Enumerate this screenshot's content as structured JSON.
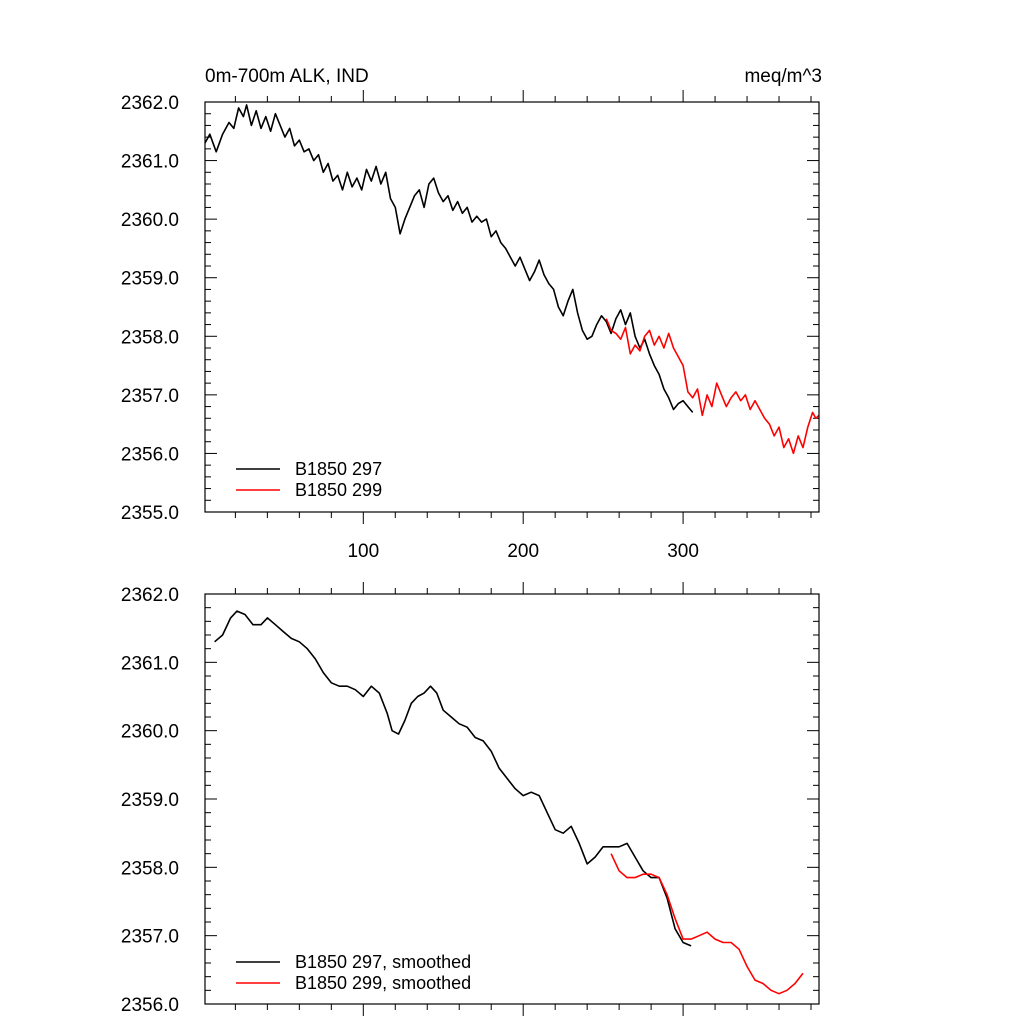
{
  "colors": {
    "black": "#000000",
    "red": "#ff0000"
  },
  "chart_data": [
    {
      "type": "line",
      "title": "0m-700m ALK, IND",
      "units": "meq/m^3",
      "xlim": [
        1,
        385
      ],
      "ylim": [
        2355.0,
        2362.0
      ],
      "x_ticks": [
        100,
        200,
        300
      ],
      "x_tick_labels": [
        "100",
        "200",
        "300"
      ],
      "y_ticks": [
        2355.0,
        2356.0,
        2357.0,
        2358.0,
        2359.0,
        2360.0,
        2361.0,
        2362.0
      ],
      "y_tick_labels": [
        "2355.0",
        "2356.0",
        "2357.0",
        "2358.0",
        "2359.0",
        "2360.0",
        "2361.0",
        "2362.0"
      ],
      "legend": "bottom-left",
      "series": [
        {
          "name": "B1850 297",
          "color": "#000000",
          "points": [
            [
              1,
              2361.3
            ],
            [
              4,
              2361.45
            ],
            [
              8,
              2361.15
            ],
            [
              12,
              2361.45
            ],
            [
              16,
              2361.65
            ],
            [
              19,
              2361.55
            ],
            [
              22,
              2361.9
            ],
            [
              25,
              2361.75
            ],
            [
              27,
              2361.95
            ],
            [
              30,
              2361.6
            ],
            [
              33,
              2361.85
            ],
            [
              36,
              2361.55
            ],
            [
              39,
              2361.75
            ],
            [
              42,
              2361.5
            ],
            [
              45,
              2361.8
            ],
            [
              48,
              2361.6
            ],
            [
              51,
              2361.4
            ],
            [
              54,
              2361.55
            ],
            [
              57,
              2361.25
            ],
            [
              60,
              2361.35
            ],
            [
              63,
              2361.15
            ],
            [
              66,
              2361.2
            ],
            [
              69,
              2361.0
            ],
            [
              72,
              2361.1
            ],
            [
              75,
              2360.8
            ],
            [
              78,
              2360.95
            ],
            [
              81,
              2360.65
            ],
            [
              84,
              2360.75
            ],
            [
              87,
              2360.5
            ],
            [
              90,
              2360.8
            ],
            [
              93,
              2360.55
            ],
            [
              96,
              2360.7
            ],
            [
              99,
              2360.5
            ],
            [
              102,
              2360.85
            ],
            [
              105,
              2360.65
            ],
            [
              108,
              2360.9
            ],
            [
              111,
              2360.6
            ],
            [
              114,
              2360.8
            ],
            [
              117,
              2360.35
            ],
            [
              120,
              2360.2
            ],
            [
              123,
              2359.75
            ],
            [
              126,
              2360.0
            ],
            [
              129,
              2360.2
            ],
            [
              132,
              2360.4
            ],
            [
              135,
              2360.5
            ],
            [
              138,
              2360.2
            ],
            [
              141,
              2360.6
            ],
            [
              144,
              2360.7
            ],
            [
              147,
              2360.45
            ],
            [
              150,
              2360.3
            ],
            [
              153,
              2360.4
            ],
            [
              156,
              2360.15
            ],
            [
              159,
              2360.3
            ],
            [
              162,
              2360.1
            ],
            [
              165,
              2360.2
            ],
            [
              168,
              2359.95
            ],
            [
              171,
              2360.05
            ],
            [
              174,
              2359.95
            ],
            [
              177,
              2360.0
            ],
            [
              180,
              2359.7
            ],
            [
              183,
              2359.8
            ],
            [
              186,
              2359.6
            ],
            [
              189,
              2359.5
            ],
            [
              192,
              2359.35
            ],
            [
              195,
              2359.2
            ],
            [
              198,
              2359.35
            ],
            [
              201,
              2359.15
            ],
            [
              204,
              2358.95
            ],
            [
              207,
              2359.1
            ],
            [
              210,
              2359.3
            ],
            [
              213,
              2359.05
            ],
            [
              216,
              2358.9
            ],
            [
              219,
              2358.8
            ],
            [
              222,
              2358.5
            ],
            [
              225,
              2358.35
            ],
            [
              228,
              2358.6
            ],
            [
              231,
              2358.8
            ],
            [
              234,
              2358.4
            ],
            [
              237,
              2358.1
            ],
            [
              240,
              2357.95
            ],
            [
              243,
              2358.0
            ],
            [
              246,
              2358.2
            ],
            [
              249,
              2358.35
            ],
            [
              252,
              2358.25
            ],
            [
              255,
              2358.05
            ],
            [
              258,
              2358.3
            ],
            [
              261,
              2358.45
            ],
            [
              264,
              2358.2
            ],
            [
              267,
              2358.4
            ],
            [
              270,
              2358.0
            ],
            [
              273,
              2357.8
            ],
            [
              276,
              2357.95
            ],
            [
              279,
              2357.7
            ],
            [
              282,
              2357.5
            ],
            [
              285,
              2357.35
            ],
            [
              288,
              2357.1
            ],
            [
              291,
              2356.95
            ],
            [
              294,
              2356.75
            ],
            [
              297,
              2356.85
            ],
            [
              300,
              2356.9
            ],
            [
              303,
              2356.8
            ],
            [
              306,
              2356.7
            ]
          ]
        },
        {
          "name": "B1850 299",
          "color": "#ff0000",
          "points": [
            [
              252,
              2358.3
            ],
            [
              255,
              2358.1
            ],
            [
              258,
              2358.05
            ],
            [
              261,
              2357.95
            ],
            [
              264,
              2358.15
            ],
            [
              267,
              2357.7
            ],
            [
              270,
              2357.85
            ],
            [
              273,
              2357.75
            ],
            [
              276,
              2358.0
            ],
            [
              279,
              2358.1
            ],
            [
              282,
              2357.85
            ],
            [
              285,
              2358.0
            ],
            [
              288,
              2357.8
            ],
            [
              291,
              2358.05
            ],
            [
              294,
              2357.8
            ],
            [
              297,
              2357.65
            ],
            [
              300,
              2357.5
            ],
            [
              303,
              2357.05
            ],
            [
              306,
              2356.95
            ],
            [
              309,
              2357.1
            ],
            [
              312,
              2356.65
            ],
            [
              315,
              2357.0
            ],
            [
              318,
              2356.8
            ],
            [
              321,
              2357.2
            ],
            [
              324,
              2357.0
            ],
            [
              327,
              2356.8
            ],
            [
              330,
              2356.95
            ],
            [
              333,
              2357.05
            ],
            [
              336,
              2356.9
            ],
            [
              339,
              2357.0
            ],
            [
              342,
              2356.75
            ],
            [
              345,
              2356.9
            ],
            [
              348,
              2356.75
            ],
            [
              351,
              2356.6
            ],
            [
              354,
              2356.5
            ],
            [
              357,
              2356.3
            ],
            [
              360,
              2356.45
            ],
            [
              363,
              2356.1
            ],
            [
              366,
              2356.25
            ],
            [
              369,
              2356.0
            ],
            [
              372,
              2356.3
            ],
            [
              375,
              2356.1
            ],
            [
              378,
              2356.45
            ],
            [
              381,
              2356.7
            ],
            [
              383,
              2356.6
            ],
            [
              385,
              2356.65
            ]
          ]
        }
      ]
    },
    {
      "type": "line",
      "title": "",
      "xlim": [
        1,
        385
      ],
      "ylim": [
        2356.0,
        2362.0
      ],
      "x_ticks": [
        100,
        200,
        300
      ],
      "x_tick_labels": [],
      "y_ticks": [
        2356.0,
        2357.0,
        2358.0,
        2359.0,
        2360.0,
        2361.0,
        2362.0
      ],
      "y_tick_labels": [
        "2356.0",
        "2357.0",
        "2358.0",
        "2359.0",
        "2360.0",
        "2361.0",
        "2362.0"
      ],
      "legend": "bottom-left",
      "series": [
        {
          "name": "B1850 297, smoothed",
          "color": "#000000",
          "points": [
            [
              7,
              2361.3
            ],
            [
              12,
              2361.4
            ],
            [
              17,
              2361.65
            ],
            [
              21,
              2361.75
            ],
            [
              26,
              2361.7
            ],
            [
              31,
              2361.55
            ],
            [
              36,
              2361.55
            ],
            [
              40,
              2361.65
            ],
            [
              45,
              2361.55
            ],
            [
              50,
              2361.45
            ],
            [
              55,
              2361.35
            ],
            [
              60,
              2361.3
            ],
            [
              65,
              2361.2
            ],
            [
              70,
              2361.05
            ],
            [
              75,
              2360.85
            ],
            [
              80,
              2360.7
            ],
            [
              85,
              2360.65
            ],
            [
              90,
              2360.65
            ],
            [
              95,
              2360.6
            ],
            [
              100,
              2360.5
            ],
            [
              105,
              2360.65
            ],
            [
              110,
              2360.55
            ],
            [
              115,
              2360.25
            ],
            [
              118,
              2360.0
            ],
            [
              122,
              2359.95
            ],
            [
              126,
              2360.15
            ],
            [
              130,
              2360.4
            ],
            [
              134,
              2360.5
            ],
            [
              138,
              2360.55
            ],
            [
              142,
              2360.65
            ],
            [
              146,
              2360.55
            ],
            [
              150,
              2360.3
            ],
            [
              155,
              2360.2
            ],
            [
              160,
              2360.1
            ],
            [
              165,
              2360.05
            ],
            [
              170,
              2359.9
            ],
            [
              175,
              2359.85
            ],
            [
              180,
              2359.7
            ],
            [
              185,
              2359.45
            ],
            [
              190,
              2359.3
            ],
            [
              195,
              2359.15
            ],
            [
              200,
              2359.05
            ],
            [
              205,
              2359.1
            ],
            [
              210,
              2359.05
            ],
            [
              215,
              2358.8
            ],
            [
              220,
              2358.55
            ],
            [
              225,
              2358.5
            ],
            [
              230,
              2358.6
            ],
            [
              235,
              2358.35
            ],
            [
              240,
              2358.05
            ],
            [
              245,
              2358.15
            ],
            [
              250,
              2358.3
            ],
            [
              255,
              2358.3
            ],
            [
              260,
              2358.3
            ],
            [
              265,
              2358.35
            ],
            [
              270,
              2358.15
            ],
            [
              275,
              2357.95
            ],
            [
              280,
              2357.85
            ],
            [
              285,
              2357.85
            ],
            [
              290,
              2357.55
            ],
            [
              295,
              2357.1
            ],
            [
              300,
              2356.9
            ],
            [
              305,
              2356.85
            ]
          ]
        },
        {
          "name": "B1850 299, smoothed",
          "color": "#ff0000",
          "points": [
            [
              255,
              2358.2
            ],
            [
              260,
              2357.95
            ],
            [
              265,
              2357.85
            ],
            [
              270,
              2357.85
            ],
            [
              275,
              2357.9
            ],
            [
              280,
              2357.9
            ],
            [
              285,
              2357.85
            ],
            [
              290,
              2357.6
            ],
            [
              295,
              2357.25
            ],
            [
              300,
              2356.95
            ],
            [
              305,
              2356.95
            ],
            [
              310,
              2357.0
            ],
            [
              315,
              2357.05
            ],
            [
              320,
              2356.95
            ],
            [
              325,
              2356.9
            ],
            [
              330,
              2356.9
            ],
            [
              335,
              2356.8
            ],
            [
              340,
              2356.55
            ],
            [
              345,
              2356.35
            ],
            [
              350,
              2356.3
            ],
            [
              355,
              2356.2
            ],
            [
              360,
              2356.15
            ],
            [
              365,
              2356.2
            ],
            [
              370,
              2356.3
            ],
            [
              375,
              2356.45
            ]
          ]
        }
      ]
    }
  ]
}
